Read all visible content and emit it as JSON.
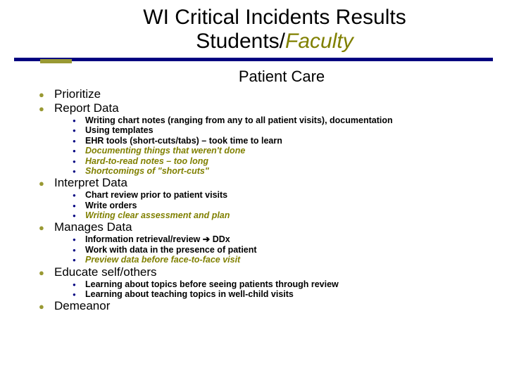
{
  "colors": {
    "navy": "#000080",
    "olive_text": "#808000",
    "olive_accent": "#999933",
    "black": "#000000",
    "background": "#ffffff"
  },
  "typography": {
    "title_fontsize": 30,
    "subtitle_fontsize": 22,
    "l1_fontsize": 17,
    "l2_fontsize": 12.5,
    "font_family": "Arial"
  },
  "title": {
    "line1": "WI Critical Incidents Results",
    "line2_a": "Students/",
    "line2_b": "Faculty"
  },
  "subtitle": "Patient Care",
  "items": [
    {
      "label": "Prioritize",
      "subs": []
    },
    {
      "label": "Report Data",
      "subs": [
        {
          "text": "Writing chart notes (ranging from any to all patient visits), documentation",
          "style": "plain"
        },
        {
          "text": "Using templates",
          "style": "plain"
        },
        {
          "text": "EHR tools (short-cuts/tabs) – took time to learn",
          "style": "plain"
        },
        {
          "text": "Documenting things that weren't done",
          "style": "italic-olive"
        },
        {
          "text": "Hard-to-read notes – too long",
          "style": "italic-olive"
        },
        {
          "text": "Shortcomings of \"short-cuts\"",
          "style": "italic-olive"
        }
      ]
    },
    {
      "label": "Interpret Data",
      "subs": [
        {
          "text": "Chart review prior to patient visits",
          "style": "plain"
        },
        {
          "text": "Write orders",
          "style": "plain"
        },
        {
          "text": "Writing clear assessment and plan",
          "style": "italic-olive"
        }
      ]
    },
    {
      "label": "Manages Data",
      "subs": [
        {
          "text": "Information retrieval/review → DDx",
          "style": "plain",
          "arrow": true
        },
        {
          "text": "Work with data in the presence of patient",
          "style": "plain"
        },
        {
          "text": "Preview data before face-to-face visit",
          "style": "italic-olive"
        }
      ]
    },
    {
      "label": "Educate self/others",
      "subs": [
        {
          "text": "Learning about topics before seeing patients through review",
          "style": "plain"
        },
        {
          "text": "Learning about teaching topics in well-child visits",
          "style": "plain"
        }
      ]
    },
    {
      "label": "Demeanor",
      "subs": []
    }
  ],
  "arrow_glyph": "➔"
}
